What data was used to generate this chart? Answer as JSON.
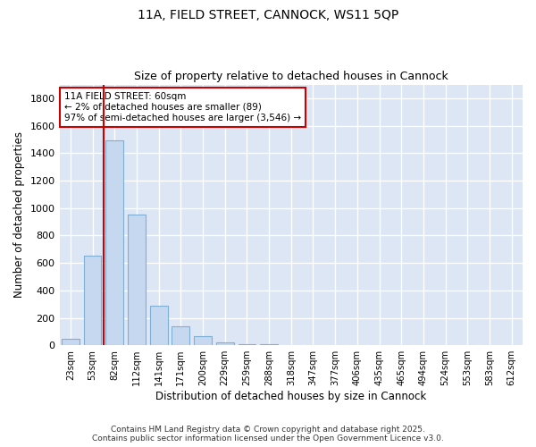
{
  "title1": "11A, FIELD STREET, CANNOCK, WS11 5QP",
  "title2": "Size of property relative to detached houses in Cannock",
  "xlabel": "Distribution of detached houses by size in Cannock",
  "ylabel": "Number of detached properties",
  "categories": [
    "23sqm",
    "53sqm",
    "82sqm",
    "112sqm",
    "141sqm",
    "171sqm",
    "200sqm",
    "229sqm",
    "259sqm",
    "288sqm",
    "318sqm",
    "347sqm",
    "377sqm",
    "406sqm",
    "435sqm",
    "465sqm",
    "494sqm",
    "524sqm",
    "553sqm",
    "583sqm",
    "612sqm"
  ],
  "values": [
    50,
    650,
    1490,
    950,
    290,
    135,
    65,
    22,
    10,
    5,
    3,
    2,
    1,
    1,
    0,
    0,
    0,
    0,
    0,
    0,
    0
  ],
  "bar_color": "#c5d8f0",
  "bar_edge_color": "#7fafd4",
  "vline_x_index": 1.5,
  "vline_color": "#cc0000",
  "annotation_text": "11A FIELD STREET: 60sqm\n← 2% of detached houses are smaller (89)\n97% of semi-detached houses are larger (3,546) →",
  "annotation_box_facecolor": "#ffffff",
  "annotation_box_edgecolor": "#cc0000",
  "ylim": [
    0,
    1900
  ],
  "yticks": [
    0,
    200,
    400,
    600,
    800,
    1000,
    1200,
    1400,
    1600,
    1800
  ],
  "fig_bg_color": "#ffffff",
  "plot_bg_color": "#dce6f5",
  "grid_color": "#ffffff",
  "footer1": "Contains HM Land Registry data © Crown copyright and database right 2025.",
  "footer2": "Contains public sector information licensed under the Open Government Licence v3.0."
}
